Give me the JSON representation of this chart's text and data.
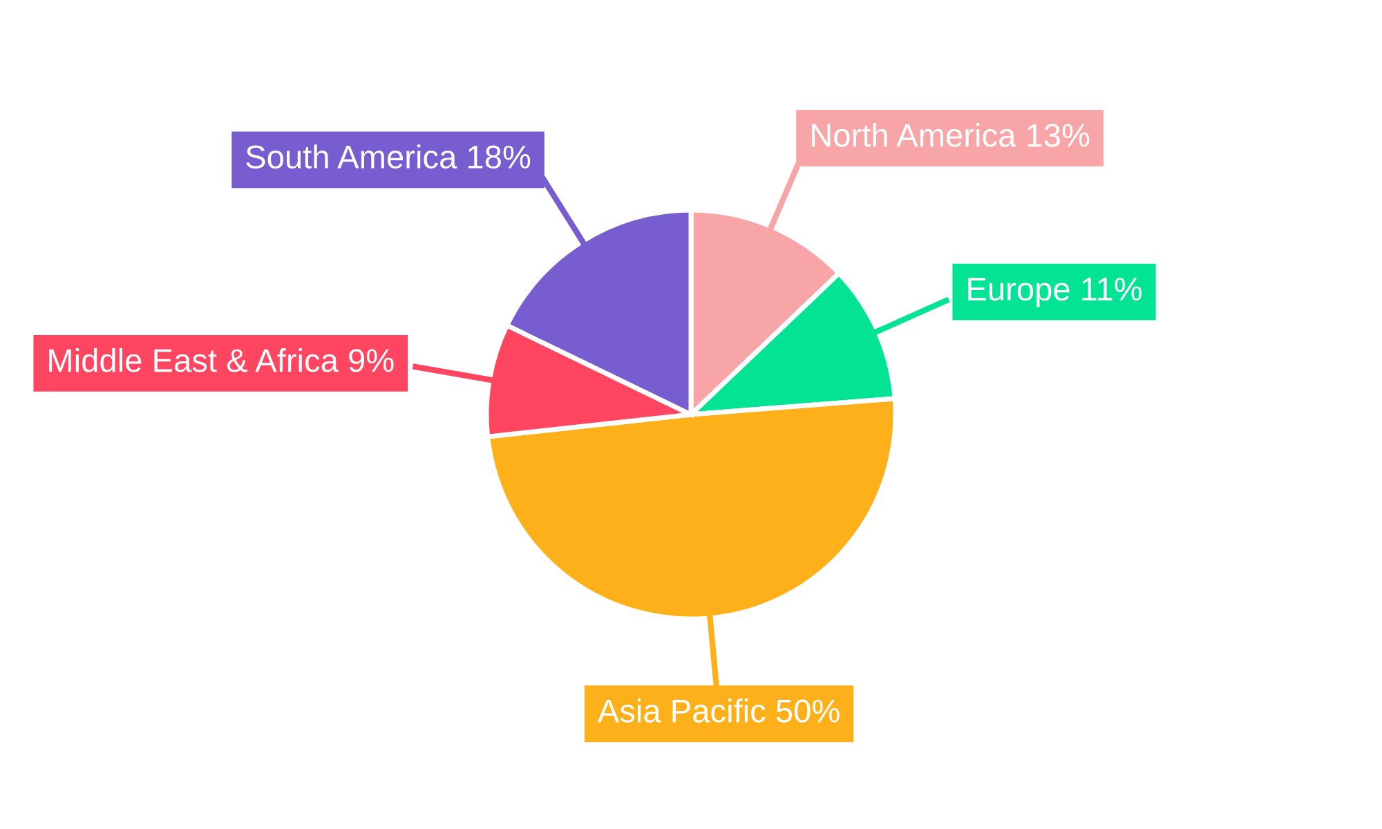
{
  "chart_data": {
    "type": "pie",
    "categories": [
      "North America",
      "Europe",
      "Asia Pacific",
      "Middle East & Africa",
      "South America"
    ],
    "values": [
      13,
      11,
      50,
      9,
      18
    ],
    "value_labels": [
      "13%",
      "11%",
      "50%",
      "9%",
      "18%"
    ],
    "colors": [
      "#f8a5a8",
      "#02e394",
      "#fdb01a",
      "#ff4560",
      "#775dd0"
    ],
    "legend": false
  }
}
